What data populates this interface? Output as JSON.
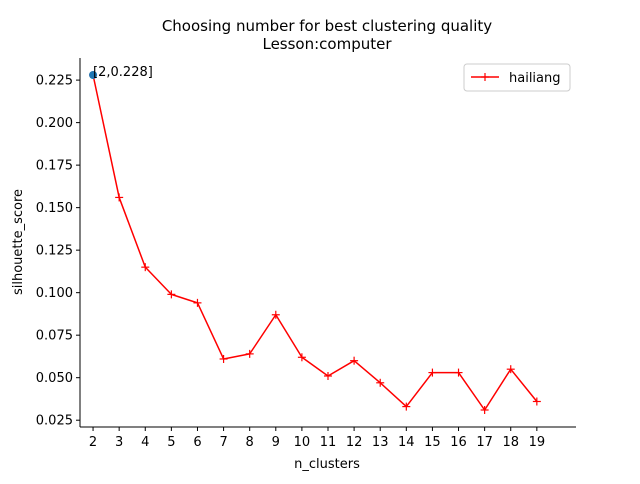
{
  "chart_data": {
    "type": "line",
    "title": "Choosing number for best clustering quality",
    "subtitle": "Lesson:computer",
    "xlabel": "n_clusters",
    "ylabel": "silhouette_score",
    "x": [
      2,
      3,
      4,
      5,
      6,
      7,
      8,
      9,
      10,
      11,
      12,
      13,
      14,
      15,
      16,
      17,
      18,
      19
    ],
    "xlim": [
      1.5,
      20.5
    ],
    "ylim": [
      0.021,
      0.238
    ],
    "x_ticks": [
      "2",
      "3",
      "4",
      "5",
      "6",
      "7",
      "8",
      "9",
      "10",
      "11",
      "12",
      "13",
      "14",
      "15",
      "16",
      "17",
      "18",
      "19"
    ],
    "y_ticks": [
      "0.025",
      "0.050",
      "0.075",
      "0.100",
      "0.125",
      "0.150",
      "0.175",
      "0.200",
      "0.225"
    ],
    "y_tick_values": [
      0.025,
      0.05,
      0.075,
      0.1,
      0.125,
      0.15,
      0.175,
      0.2,
      0.225
    ],
    "series": [
      {
        "name": "hailiang",
        "color": "#ff0000",
        "marker": "plus",
        "values": [
          0.228,
          0.156,
          0.115,
          0.099,
          0.094,
          0.061,
          0.064,
          0.087,
          0.062,
          0.051,
          0.06,
          0.047,
          0.033,
          0.053,
          0.053,
          0.031,
          0.055,
          0.036
        ]
      }
    ],
    "highlight": {
      "x": 2,
      "y": 0.228,
      "label": "[2,0.228]",
      "color": "#1f77b4"
    },
    "legend_position": "top-right",
    "grid": false
  }
}
